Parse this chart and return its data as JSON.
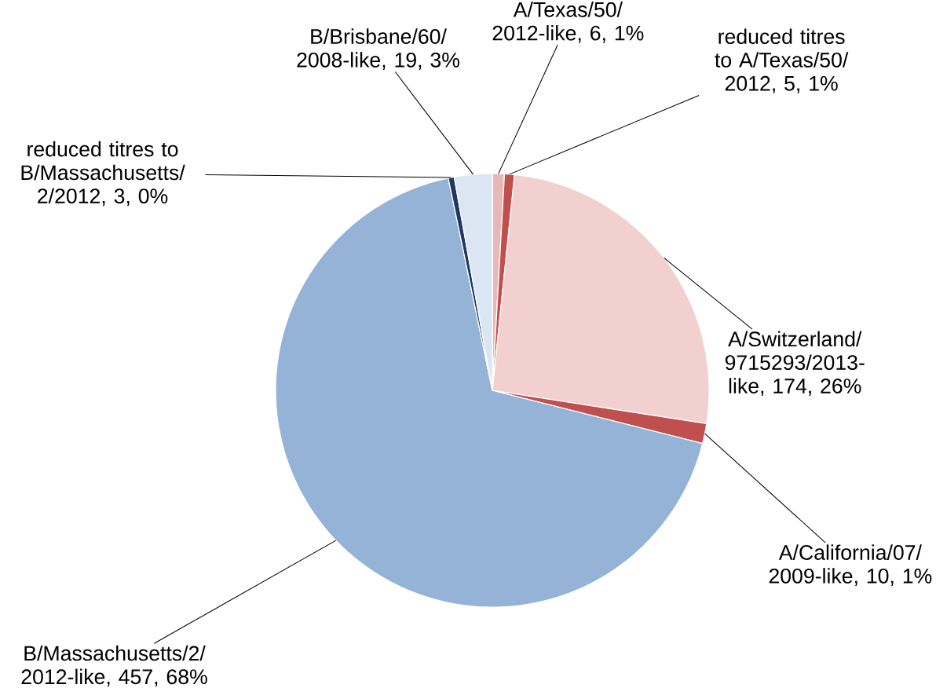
{
  "chart_data": {
    "type": "pie",
    "categories": [
      "A/Texas/50/2012-like",
      "reduced titres to A/Texas/50/2012",
      "A/Switzerland/9715293/2013-like",
      "A/California/07/2009-like",
      "B/Massachusetts/2/2012-like",
      "reduced titres to B/Massachusetts/2/2012",
      "B/Brisbane/60/2008-like"
    ],
    "values": [
      6,
      5,
      174,
      10,
      457,
      3,
      19
    ],
    "value_labels": [
      ", 6, 1%",
      ", 5, 1%",
      ", 174, 26%",
      ", 10, 1%",
      ", 457, 68%",
      ", 3, 0%",
      ", 19, 3%"
    ],
    "colors": [
      "#e6b9b8",
      "#c0504d",
      "#f2d0cf",
      "#c0504d",
      "#95b3d7",
      "#1f3864",
      "#dce6f2"
    ]
  }
}
